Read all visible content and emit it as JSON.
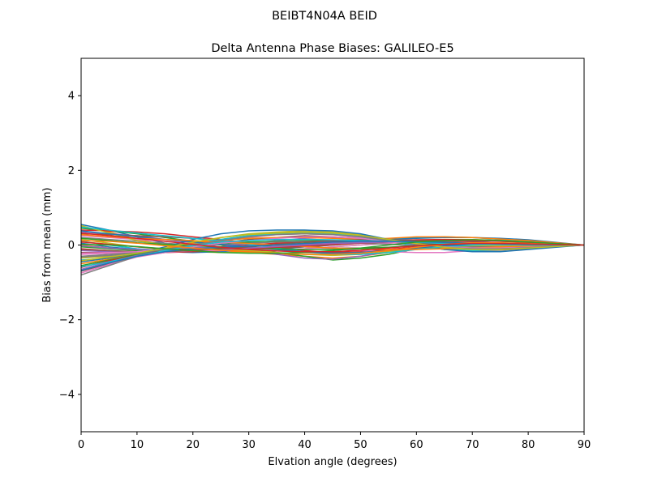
{
  "suptitle": "BEIBT4N04A       BEID",
  "chart_data": {
    "type": "line",
    "title": "Delta Antenna Phase Biases: GALILEO-E5",
    "xlabel": "Elvation angle (degrees)",
    "ylabel": "Bias from mean (mm)",
    "xlim": [
      0,
      90
    ],
    "ylim": [
      -5,
      5
    ],
    "xticks": [
      0,
      10,
      20,
      30,
      40,
      50,
      60,
      70,
      80,
      90
    ],
    "yticks": [
      -4,
      -2,
      0,
      2,
      4
    ],
    "grid": false,
    "legend": "none",
    "x": [
      0,
      5,
      10,
      15,
      20,
      25,
      30,
      35,
      40,
      45,
      50,
      55,
      60,
      65,
      70,
      75,
      80,
      85,
      90
    ],
    "colors": [
      "#1f77b4",
      "#ff7f0e",
      "#2ca02c",
      "#d62728",
      "#9467bd",
      "#8c564b",
      "#e377c2",
      "#7f7f7f",
      "#bcbd22",
      "#17becf"
    ],
    "series": [
      {
        "values": [
          0.55,
          0.4,
          0.22,
          0.05,
          -0.05,
          -0.1,
          -0.12,
          -0.1,
          -0.05,
          0.0,
          0.05,
          0.08,
          0.08,
          0.06,
          0.05,
          0.04,
          0.03,
          0.01,
          0.0
        ]
      },
      {
        "values": [
          0.5,
          0.35,
          0.15,
          0.0,
          -0.1,
          -0.15,
          -0.2,
          -0.25,
          -0.3,
          -0.35,
          -0.3,
          -0.2,
          -0.1,
          -0.02,
          0.02,
          0.03,
          0.02,
          0.01,
          0.0
        ]
      },
      {
        "values": [
          0.45,
          0.38,
          0.3,
          0.2,
          0.1,
          0.0,
          -0.1,
          -0.2,
          -0.3,
          -0.4,
          -0.35,
          -0.25,
          -0.1,
          0.0,
          0.05,
          0.06,
          0.04,
          0.02,
          0.0
        ]
      },
      {
        "values": [
          0.4,
          0.38,
          0.35,
          0.3,
          0.22,
          0.15,
          0.05,
          -0.05,
          -0.15,
          -0.2,
          -0.18,
          -0.12,
          -0.05,
          0.0,
          0.03,
          0.03,
          0.02,
          0.01,
          0.0
        ]
      },
      {
        "values": [
          0.35,
          0.3,
          0.25,
          0.15,
          0.05,
          -0.05,
          -0.15,
          -0.25,
          -0.35,
          -0.38,
          -0.3,
          -0.18,
          -0.05,
          0.05,
          0.1,
          0.1,
          0.07,
          0.03,
          0.0
        ]
      },
      {
        "values": [
          0.3,
          0.28,
          0.25,
          0.22,
          0.18,
          0.12,
          0.05,
          0.0,
          -0.05,
          -0.08,
          -0.08,
          -0.06,
          -0.03,
          0.0,
          0.02,
          0.02,
          0.02,
          0.01,
          0.0
        ]
      },
      {
        "values": [
          0.25,
          0.2,
          0.15,
          0.1,
          0.05,
          0.02,
          0.0,
          -0.02,
          -0.05,
          -0.1,
          -0.15,
          -0.18,
          -0.2,
          -0.2,
          -0.15,
          -0.1,
          -0.05,
          -0.02,
          0.0
        ]
      },
      {
        "values": [
          0.2,
          0.15,
          0.1,
          0.05,
          0.0,
          -0.05,
          -0.1,
          -0.15,
          -0.2,
          -0.22,
          -0.2,
          -0.15,
          -0.1,
          -0.06,
          -0.03,
          -0.02,
          -0.01,
          0.0,
          0.0
        ]
      },
      {
        "values": [
          0.15,
          0.05,
          -0.05,
          -0.12,
          -0.18,
          -0.2,
          -0.2,
          -0.15,
          -0.1,
          -0.05,
          0.0,
          0.05,
          0.1,
          0.15,
          0.15,
          0.12,
          0.08,
          0.04,
          0.0
        ]
      },
      {
        "values": [
          0.1,
          0.0,
          -0.1,
          -0.15,
          -0.18,
          -0.15,
          -0.1,
          -0.05,
          0.0,
          0.05,
          0.1,
          0.15,
          0.2,
          0.22,
          0.2,
          0.15,
          0.1,
          0.05,
          0.0
        ]
      },
      {
        "values": [
          0.05,
          -0.05,
          -0.12,
          -0.18,
          -0.2,
          -0.18,
          -0.12,
          -0.05,
          0.02,
          0.08,
          0.12,
          0.15,
          0.18,
          0.2,
          0.2,
          0.18,
          0.14,
          0.07,
          0.0
        ]
      },
      {
        "values": [
          0.0,
          -0.08,
          -0.15,
          -0.15,
          -0.1,
          -0.05,
          0.0,
          0.05,
          0.1,
          0.12,
          0.15,
          0.18,
          0.22,
          0.22,
          0.2,
          0.16,
          0.12,
          0.06,
          0.0
        ]
      },
      {
        "values": [
          -0.05,
          -0.1,
          -0.15,
          -0.15,
          -0.12,
          -0.08,
          -0.05,
          0.0,
          0.05,
          0.08,
          0.1,
          0.12,
          0.12,
          0.1,
          0.08,
          0.05,
          0.03,
          0.01,
          0.0
        ]
      },
      {
        "values": [
          -0.1,
          -0.15,
          -0.2,
          -0.2,
          -0.18,
          -0.15,
          -0.1,
          -0.05,
          0.0,
          0.05,
          0.1,
          0.12,
          0.14,
          0.15,
          0.14,
          0.12,
          0.08,
          0.04,
          0.0
        ]
      },
      {
        "values": [
          -0.15,
          -0.18,
          -0.2,
          -0.18,
          -0.12,
          -0.05,
          0.05,
          0.12,
          0.18,
          0.2,
          0.18,
          0.12,
          0.05,
          0.0,
          -0.03,
          -0.04,
          -0.03,
          -0.01,
          0.0
        ]
      },
      {
        "values": [
          -0.2,
          -0.2,
          -0.2,
          -0.15,
          -0.05,
          0.05,
          0.15,
          0.2,
          0.25,
          0.22,
          0.18,
          0.1,
          0.02,
          -0.03,
          -0.05,
          -0.05,
          -0.04,
          -0.02,
          0.0
        ]
      },
      {
        "values": [
          -0.25,
          -0.22,
          -0.18,
          -0.1,
          0.0,
          0.1,
          0.2,
          0.28,
          0.3,
          0.28,
          0.2,
          0.1,
          0.0,
          -0.08,
          -0.1,
          -0.08,
          -0.05,
          -0.02,
          0.0
        ]
      },
      {
        "values": [
          -0.3,
          -0.25,
          -0.2,
          -0.1,
          0.02,
          0.15,
          0.25,
          0.32,
          0.35,
          0.32,
          0.25,
          0.12,
          0.0,
          -0.1,
          -0.15,
          -0.14,
          -0.1,
          -0.05,
          0.0
        ]
      },
      {
        "values": [
          -0.35,
          -0.3,
          -0.22,
          -0.1,
          0.05,
          0.2,
          0.3,
          0.35,
          0.38,
          0.35,
          0.28,
          0.15,
          0.02,
          -0.08,
          -0.12,
          -0.12,
          -0.08,
          -0.04,
          0.0
        ]
      },
      {
        "values": [
          -0.4,
          -0.35,
          -0.25,
          -0.12,
          0.02,
          0.15,
          0.25,
          0.3,
          0.32,
          0.3,
          0.22,
          0.1,
          -0.02,
          -0.12,
          -0.15,
          -0.12,
          -0.08,
          -0.04,
          0.0
        ]
      },
      {
        "values": [
          -0.45,
          -0.35,
          -0.22,
          -0.05,
          0.15,
          0.3,
          0.38,
          0.4,
          0.4,
          0.38,
          0.3,
          0.15,
          0.0,
          -0.12,
          -0.18,
          -0.18,
          -0.12,
          -0.06,
          0.0
        ]
      },
      {
        "values": [
          -0.5,
          -0.38,
          -0.25,
          -0.1,
          0.05,
          0.12,
          0.18,
          0.2,
          0.2,
          0.18,
          0.15,
          0.12,
          0.08,
          0.05,
          0.03,
          0.02,
          0.01,
          0.0,
          0.0
        ]
      },
      {
        "values": [
          -0.55,
          -0.4,
          -0.25,
          -0.12,
          -0.02,
          0.05,
          0.08,
          0.1,
          0.12,
          0.12,
          0.1,
          0.08,
          0.05,
          0.03,
          0.02,
          0.01,
          0.0,
          0.0,
          0.0
        ]
      },
      {
        "values": [
          -0.6,
          -0.42,
          -0.28,
          -0.18,
          -0.1,
          -0.05,
          0.0,
          0.05,
          0.08,
          0.1,
          0.1,
          0.08,
          0.06,
          0.04,
          0.02,
          0.01,
          0.0,
          0.0,
          0.0
        ]
      },
      {
        "values": [
          -0.65,
          -0.45,
          -0.28,
          -0.15,
          -0.08,
          -0.05,
          -0.02,
          0.0,
          0.02,
          0.05,
          0.08,
          0.1,
          0.1,
          0.08,
          0.06,
          0.04,
          0.02,
          0.01,
          0.0
        ]
      },
      {
        "values": [
          -0.7,
          -0.5,
          -0.3,
          -0.2,
          -0.15,
          -0.12,
          -0.1,
          -0.08,
          -0.05,
          0.0,
          0.05,
          0.08,
          0.1,
          0.1,
          0.08,
          0.05,
          0.03,
          0.01,
          0.0
        ]
      },
      {
        "values": [
          -0.75,
          -0.52,
          -0.32,
          -0.2,
          -0.15,
          -0.15,
          -0.15,
          -0.12,
          -0.1,
          -0.05,
          0.0,
          0.05,
          0.08,
          0.08,
          0.06,
          0.04,
          0.02,
          0.01,
          0.0
        ]
      },
      {
        "values": [
          -0.8,
          -0.55,
          -0.3,
          -0.15,
          -0.05,
          0.02,
          0.05,
          0.08,
          0.1,
          0.08,
          0.05,
          0.02,
          -0.02,
          -0.05,
          -0.06,
          -0.05,
          -0.03,
          -0.01,
          0.0
        ]
      },
      {
        "values": [
          0.52,
          0.32,
          0.12,
          0.0,
          -0.08,
          -0.12,
          -0.15,
          -0.2,
          -0.25,
          -0.28,
          -0.25,
          -0.18,
          -0.1,
          -0.05,
          -0.02,
          -0.01,
          0.0,
          0.0,
          0.0
        ]
      },
      {
        "values": [
          0.48,
          0.4,
          0.32,
          0.25,
          0.18,
          0.1,
          0.02,
          -0.08,
          -0.18,
          -0.25,
          -0.25,
          -0.2,
          -0.12,
          -0.05,
          0.0,
          0.02,
          0.02,
          0.01,
          0.0
        ]
      },
      {
        "values": [
          0.38,
          0.3,
          0.22,
          0.15,
          0.08,
          0.02,
          -0.05,
          -0.12,
          -0.18,
          -0.22,
          -0.2,
          -0.15,
          -0.08,
          -0.02,
          0.02,
          0.03,
          0.02,
          0.01,
          0.0
        ]
      },
      {
        "values": [
          0.28,
          0.22,
          0.18,
          0.15,
          0.12,
          0.08,
          0.04,
          0.0,
          -0.04,
          -0.08,
          -0.1,
          -0.12,
          -0.12,
          -0.1,
          -0.08,
          -0.05,
          -0.03,
          -0.01,
          0.0
        ]
      },
      {
        "values": [
          0.18,
          0.12,
          0.06,
          0.02,
          -0.02,
          -0.05,
          -0.08,
          -0.1,
          -0.12,
          -0.12,
          -0.1,
          -0.06,
          -0.02,
          0.02,
          0.04,
          0.05,
          0.04,
          0.02,
          0.0
        ]
      },
      {
        "values": [
          0.08,
          0.02,
          -0.05,
          -0.1,
          -0.12,
          -0.12,
          -0.1,
          -0.06,
          -0.02,
          0.02,
          0.05,
          0.08,
          0.1,
          0.12,
          0.12,
          0.1,
          0.07,
          0.03,
          0.0
        ]
      },
      {
        "values": [
          -0.02,
          -0.08,
          -0.12,
          -0.14,
          -0.14,
          -0.12,
          -0.08,
          -0.04,
          0.0,
          0.04,
          0.06,
          0.08,
          0.08,
          0.07,
          0.05,
          0.03,
          0.02,
          0.01,
          0.0
        ]
      },
      {
        "values": [
          -0.12,
          -0.15,
          -0.18,
          -0.18,
          -0.15,
          -0.1,
          -0.05,
          0.02,
          0.08,
          0.12,
          0.14,
          0.14,
          0.12,
          0.08,
          0.05,
          0.02,
          0.0,
          0.0,
          0.0
        ]
      },
      {
        "values": [
          -0.22,
          -0.2,
          -0.18,
          -0.12,
          -0.05,
          0.05,
          0.12,
          0.18,
          0.22,
          0.22,
          0.18,
          0.1,
          0.02,
          -0.05,
          -0.08,
          -0.08,
          -0.06,
          -0.03,
          0.0
        ]
      },
      {
        "values": [
          -0.32,
          -0.28,
          -0.22,
          -0.12,
          0.0,
          0.12,
          0.22,
          0.28,
          0.3,
          0.28,
          0.22,
          0.12,
          0.02,
          -0.06,
          -0.1,
          -0.1,
          -0.07,
          -0.03,
          0.0
        ]
      },
      {
        "values": [
          -0.42,
          -0.32,
          -0.22,
          -0.08,
          0.08,
          0.2,
          0.28,
          0.32,
          0.34,
          0.32,
          0.26,
          0.15,
          0.04,
          -0.06,
          -0.12,
          -0.12,
          -0.08,
          -0.04,
          0.0
        ]
      },
      {
        "values": [
          -0.58,
          -0.45,
          -0.3,
          -0.15,
          -0.02,
          0.08,
          0.12,
          0.15,
          0.15,
          0.14,
          0.12,
          0.1,
          0.07,
          0.04,
          0.02,
          0.01,
          0.0,
          0.0,
          0.0
        ]
      },
      {
        "values": [
          -0.68,
          -0.48,
          -0.3,
          -0.18,
          -0.1,
          -0.06,
          -0.03,
          0.0,
          0.04,
          0.08,
          0.1,
          0.1,
          0.09,
          0.07,
          0.05,
          0.03,
          0.02,
          0.01,
          0.0
        ]
      },
      {
        "values": [
          0.12,
          0.1,
          0.05,
          -0.02,
          -0.08,
          -0.14,
          -0.18,
          -0.22,
          -0.25,
          -0.25,
          -0.22,
          -0.15,
          -0.06,
          0.02,
          0.06,
          0.06,
          0.04,
          0.02,
          0.0
        ]
      },
      {
        "values": [
          0.02,
          0.0,
          -0.04,
          -0.1,
          -0.15,
          -0.2,
          -0.22,
          -0.22,
          -0.2,
          -0.15,
          -0.08,
          0.0,
          0.08,
          0.12,
          0.14,
          0.12,
          0.08,
          0.04,
          0.0
        ]
      },
      {
        "values": [
          0.32,
          0.25,
          0.18,
          0.1,
          0.02,
          -0.06,
          -0.12,
          -0.16,
          -0.18,
          -0.18,
          -0.14,
          -0.08,
          -0.02,
          0.02,
          0.04,
          0.04,
          0.03,
          0.01,
          0.0
        ]
      }
    ]
  }
}
